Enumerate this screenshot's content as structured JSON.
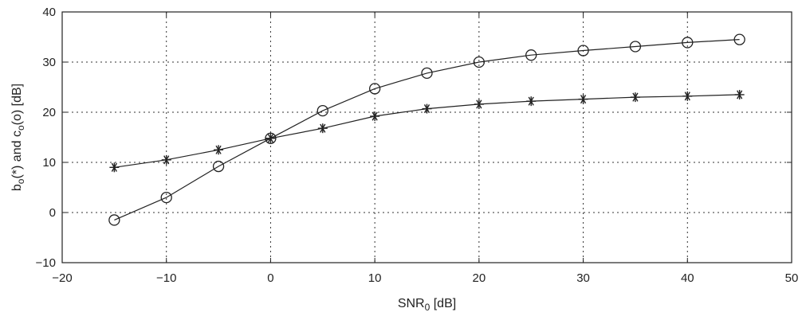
{
  "chart_data": {
    "type": "line",
    "xlabel": {
      "main": "SNR",
      "sub": "0",
      "rest": " [dB]"
    },
    "ylabel": {
      "p1": "b",
      "s1": "o",
      "p2": "(*) and c",
      "s2": "o",
      "p3": "(o) [dB]"
    },
    "xlim": [
      -20,
      50
    ],
    "ylim": [
      -10,
      40
    ],
    "xticks": [
      -20,
      -10,
      0,
      10,
      20,
      30,
      40,
      50
    ],
    "yticks": [
      -10,
      0,
      10,
      20,
      30,
      40
    ],
    "grid": true,
    "x": [
      -15,
      -10,
      -5,
      0,
      5,
      10,
      15,
      20,
      25,
      30,
      35,
      40,
      45
    ],
    "series": [
      {
        "marker": "star",
        "values": [
          9.0,
          10.5,
          12.5,
          14.8,
          16.8,
          19.2,
          20.7,
          21.6,
          22.2,
          22.6,
          23.0,
          23.2,
          23.5
        ]
      },
      {
        "marker": "circle",
        "values": [
          -1.5,
          3.0,
          9.2,
          14.8,
          20.3,
          24.7,
          27.8,
          30.0,
          31.4,
          32.3,
          33.1,
          33.9,
          34.5
        ]
      }
    ]
  }
}
